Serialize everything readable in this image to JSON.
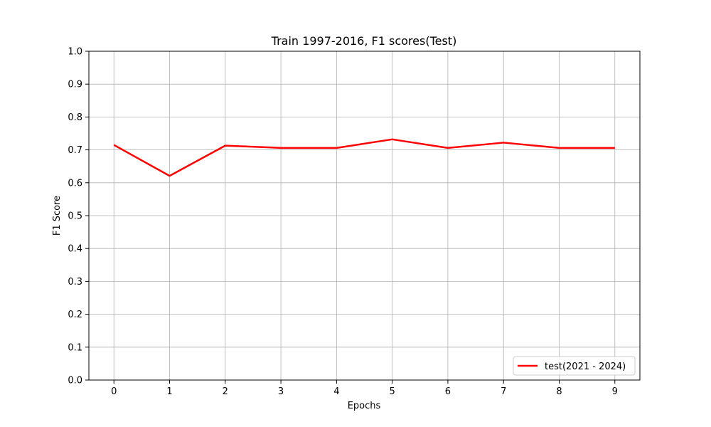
{
  "chart_data": {
    "type": "line",
    "title": "Train 1997-2016, F1 scores(Test)",
    "xlabel": "Epochs",
    "ylabel": "F1 Score",
    "x": [
      0,
      1,
      2,
      3,
      4,
      5,
      6,
      7,
      8,
      9
    ],
    "xlim": [
      -0.45,
      9.45
    ],
    "ylim": [
      0.0,
      1.0
    ],
    "xticks": [
      "0",
      "1",
      "2",
      "3",
      "4",
      "5",
      "6",
      "7",
      "8",
      "9"
    ],
    "yticks": [
      "0.0",
      "0.1",
      "0.2",
      "0.3",
      "0.4",
      "0.5",
      "0.6",
      "0.7",
      "0.8",
      "0.9",
      "1.0"
    ],
    "grid": true,
    "legend_position": "lower-right",
    "series": [
      {
        "name": "test(2021 - 2024)",
        "color": "#ff0000",
        "values": [
          0.715,
          0.621,
          0.713,
          0.706,
          0.706,
          0.732,
          0.706,
          0.722,
          0.706,
          0.706
        ]
      }
    ]
  }
}
